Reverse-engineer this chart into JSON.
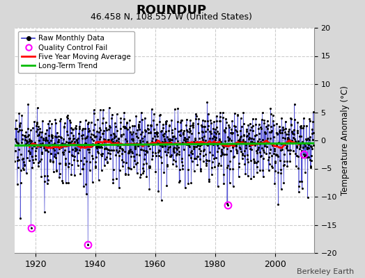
{
  "title": "ROUNDUP",
  "subtitle": "46.458 N, 108.557 W (United States)",
  "ylabel": "Temperature Anomaly (°C)",
  "credit": "Berkeley Earth",
  "ylim": [
    -20,
    20
  ],
  "xlim": [
    1913,
    2013
  ],
  "xticks": [
    1920,
    1940,
    1960,
    1980,
    2000
  ],
  "yticks": [
    -20,
    -15,
    -10,
    -5,
    0,
    5,
    10,
    15,
    20
  ],
  "outer_bg_color": "#d8d8d8",
  "plot_bg_color": "#ffffff",
  "grid_color": "#cccccc",
  "raw_line_color": "#3333cc",
  "raw_marker_color": "black",
  "moving_avg_color": "red",
  "trend_color": "#00bb00",
  "qc_fail_color": "magenta",
  "seed": 12345,
  "start_year": 1913,
  "end_year": 2012,
  "qc_fail_indices": [
    {
      "year": 1918.5,
      "value": -15.5
    },
    {
      "year": 1937.5,
      "value": -18.5
    },
    {
      "year": 1984.2,
      "value": -11.5
    },
    {
      "year": 2009.5,
      "value": -2.5
    }
  ]
}
